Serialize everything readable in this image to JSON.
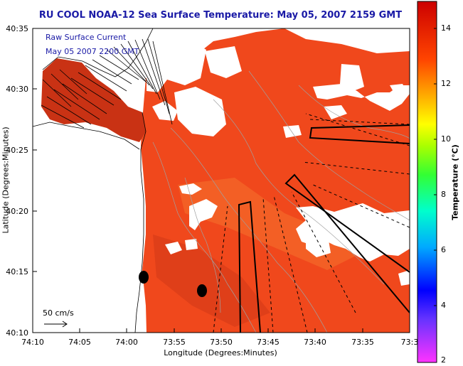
{
  "title": "RU COOL  NOAA-12  Sea Surface Temperature:  May 05, 2007 2159 GMT",
  "legend": {
    "line1": "Raw Surface Current",
    "line2": "May 05 2007 2200 GMT"
  },
  "axes": {
    "ylabel": "Latitude (Degrees:Minutes)",
    "xlabel": "Longitude (Degrees:Minutes)",
    "yticks": [
      "40:35",
      "40:30",
      "40:25",
      "40:20",
      "40:15",
      "40:10"
    ],
    "xticks": [
      "74:10",
      "74:05",
      "74:00",
      "73:55",
      "73:50",
      "73:45",
      "73:40",
      "73:35",
      "73:3"
    ]
  },
  "colorbar": {
    "title": "Temperature (°C)",
    "ticks": [
      "14",
      "12",
      "10",
      "8",
      "6",
      "4",
      "2"
    ],
    "range": [
      2,
      15
    ]
  },
  "scale": {
    "label": "50 cm/s"
  },
  "colors": {
    "title": "#1a1aa6",
    "sst_dominant": "#f0481c",
    "land": "#ffffff",
    "cloud": "#ffffff",
    "track": "#000000"
  }
}
